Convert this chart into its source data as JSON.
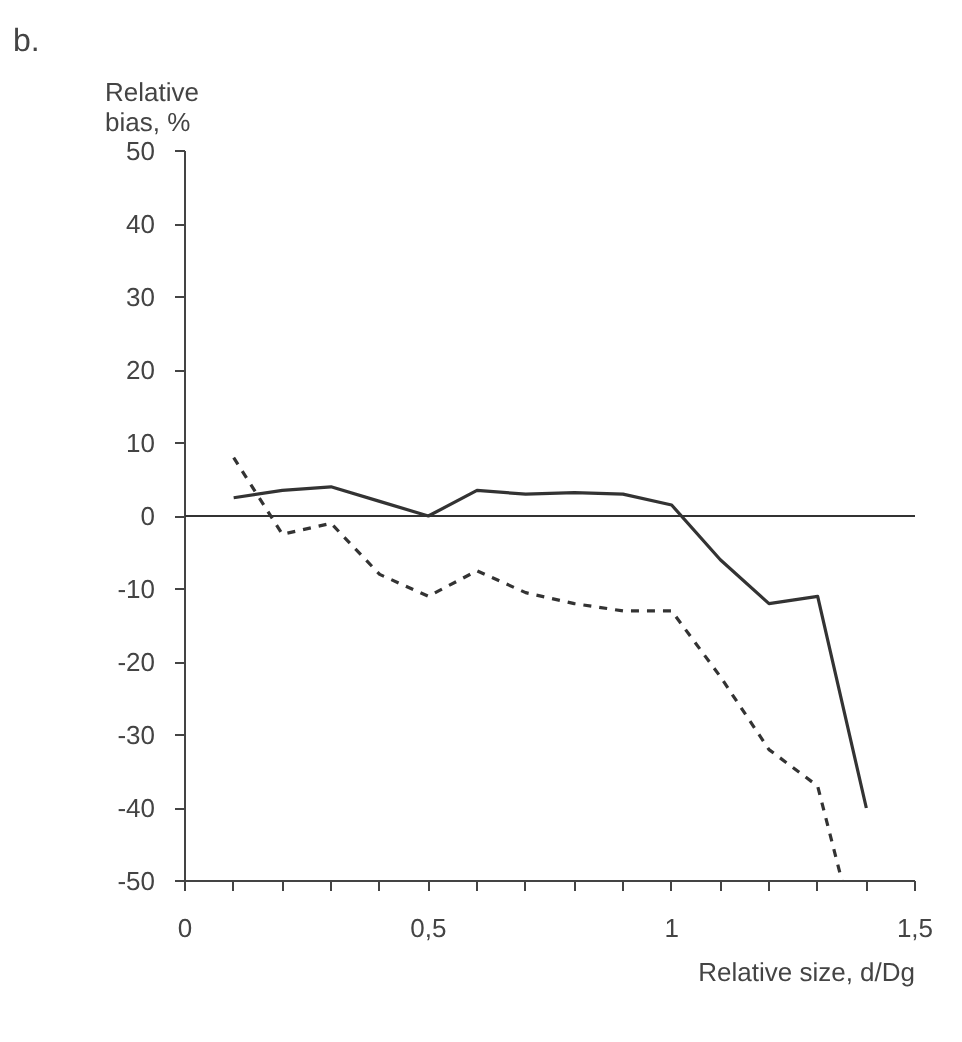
{
  "chart_data": {
    "type": "line",
    "title": "b.",
    "ylabel": "Relative\nbias, %",
    "xlabel": "Relative size, d/Dg",
    "xlim": [
      0,
      1.5
    ],
    "ylim": [
      -50,
      50
    ],
    "xticks": [
      0,
      {
        "value": 0.1,
        "label": null
      },
      {
        "value": 0.2,
        "label": null
      },
      {
        "value": 0.3,
        "label": null
      },
      {
        "value": 0.4,
        "label": null
      },
      {
        "value": 0.5,
        "label": "0,5"
      },
      {
        "value": 0.6,
        "label": null
      },
      {
        "value": 0.7,
        "label": null
      },
      {
        "value": 0.8,
        "label": null
      },
      {
        "value": 0.9,
        "label": null
      },
      1,
      {
        "value": 1.1,
        "label": null
      },
      {
        "value": 1.2,
        "label": null
      },
      {
        "value": 1.3,
        "label": null
      },
      {
        "value": 1.4,
        "label": null
      },
      {
        "value": 1.5,
        "label": "1,5"
      }
    ],
    "yticks": [
      -50,
      -40,
      -30,
      -20,
      -10,
      0,
      10,
      20,
      30,
      40,
      50
    ],
    "grid": false,
    "ref_lines": [
      {
        "axis": "y",
        "value": 0,
        "color": "#333333"
      }
    ],
    "series": [
      {
        "color": "#333333",
        "line_style": "solid",
        "x": [
          0.1,
          0.2,
          0.3,
          0.4,
          0.5,
          0.6,
          0.7,
          0.8,
          0.9,
          1.0,
          1.1,
          1.2,
          1.3,
          1.4
        ],
        "values": [
          2.5,
          3.5,
          4,
          2,
          0,
          3.5,
          3,
          3.2,
          3,
          1.5,
          -6,
          -12,
          -11,
          -40
        ]
      },
      {
        "color": "#333333",
        "line_style": "dashed",
        "x": [
          0.1,
          0.2,
          0.3,
          0.4,
          0.5,
          0.6,
          0.7,
          0.8,
          0.9,
          1.0,
          1.1,
          1.2,
          1.3,
          1.35
        ],
        "values": [
          8,
          -2.5,
          -1,
          -8,
          -11,
          -7.5,
          -10.5,
          -12,
          -13,
          -13,
          -22,
          -32,
          -37,
          -50
        ]
      }
    ]
  }
}
